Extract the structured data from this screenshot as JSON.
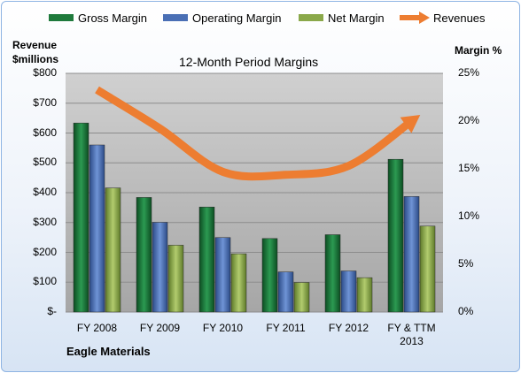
{
  "chart_data": {
    "type": "bar",
    "title": "12-Month Period Margins",
    "left_axis_label_line1": "Revenue",
    "left_axis_label_line2": "$millions",
    "right_axis_label": "Margin %",
    "footer_label": "Eagle Materials",
    "categories": [
      "FY 2008",
      "FY 2009",
      "FY 2010",
      "FY 2011",
      "FY 2012",
      "FY & TTM 2013"
    ],
    "category_label_lines": [
      [
        "FY 2008"
      ],
      [
        "FY 2009"
      ],
      [
        "FY 2010"
      ],
      [
        "FY 2011"
      ],
      [
        "FY 2012"
      ],
      [
        "FY & TTM",
        "2013"
      ]
    ],
    "left_ticks": [
      "$-",
      "$100",
      "$200",
      "$300",
      "$400",
      "$500",
      "$600",
      "$700",
      "$800"
    ],
    "right_ticks": [
      "0%",
      "5%",
      "10%",
      "15%",
      "20%",
      "25%"
    ],
    "ylim_left": [
      0,
      800
    ],
    "ylim_right": [
      0,
      25
    ],
    "grid": true,
    "legend_position": "top",
    "series": [
      {
        "name": "Gross Margin",
        "axis": "right",
        "kind": "bar",
        "color": "#1f7a3c",
        "values": [
          19.8,
          12.0,
          11.0,
          7.7,
          8.1,
          16.0
        ]
      },
      {
        "name": "Operating Margin",
        "axis": "right",
        "kind": "bar",
        "color": "#4a6fb5",
        "values": [
          17.5,
          9.4,
          7.8,
          4.2,
          4.3,
          12.1
        ]
      },
      {
        "name": "Net Margin",
        "axis": "right",
        "kind": "bar",
        "color": "#8aa84a",
        "values": [
          13.0,
          7.0,
          6.1,
          3.1,
          3.6,
          9.0
        ]
      },
      {
        "name": "Revenues",
        "axis": "left",
        "kind": "line",
        "color": "#ed7d31",
        "values": [
          745,
          615,
          470,
          460,
          490,
          640
        ]
      }
    ]
  }
}
